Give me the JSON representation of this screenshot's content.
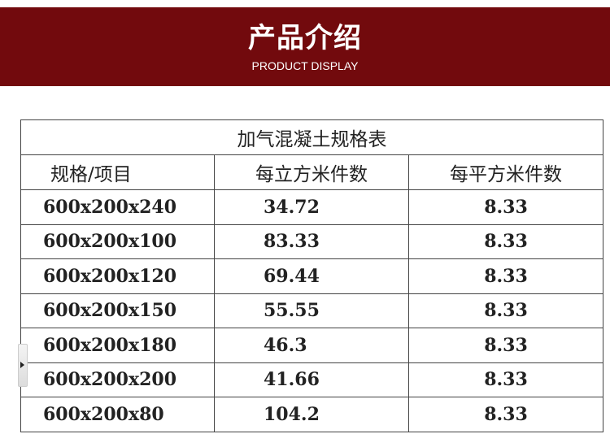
{
  "banner": {
    "title": "产品介绍",
    "subtitle": "PRODUCT DISPLAY",
    "color": "#720a0d"
  },
  "table": {
    "caption": "加气混凝土规格表",
    "headers": [
      "规格/项目",
      "每立方米件数",
      "每平方米件数"
    ],
    "rows": [
      [
        "600x200x240",
        "34.72",
        "8.33"
      ],
      [
        "600x200x100",
        "83.33",
        "8.33"
      ],
      [
        "600x200x120",
        "69.44",
        "8.33"
      ],
      [
        "600x200x150",
        "55.55",
        "8.33"
      ],
      [
        "600x200x180",
        "46.3",
        "8.33"
      ],
      [
        "600x200x200",
        "41.66",
        "8.33"
      ],
      [
        "600x200x80",
        "104.2",
        "8.33"
      ]
    ]
  },
  "side_tab": {
    "icon": "triangle-right-icon"
  }
}
